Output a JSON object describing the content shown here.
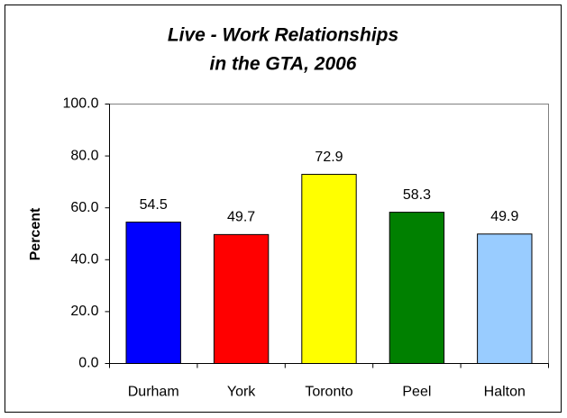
{
  "chart_data": {
    "type": "bar",
    "title": [
      "Live - Work Relationships",
      "in the GTA, 2006"
    ],
    "y_label": "Percent",
    "categories": [
      "Durham",
      "York",
      "Toronto",
      "Peel",
      "Halton"
    ],
    "values": [
      54.5,
      49.7,
      72.9,
      58.3,
      49.9
    ],
    "colors": [
      "#0000ff",
      "#ff0000",
      "#ffff00",
      "#008000",
      "#99ccff"
    ],
    "ylim": [
      0,
      100
    ],
    "yticks": [
      {
        "value": 0,
        "label": "0.0"
      },
      {
        "value": 20,
        "label": "20.0"
      },
      {
        "value": 40,
        "label": "40.0"
      },
      {
        "value": 60,
        "label": "60.0"
      },
      {
        "value": 80,
        "label": "80.0"
      },
      {
        "value": 100,
        "label": "100.0"
      }
    ],
    "grid": false
  }
}
